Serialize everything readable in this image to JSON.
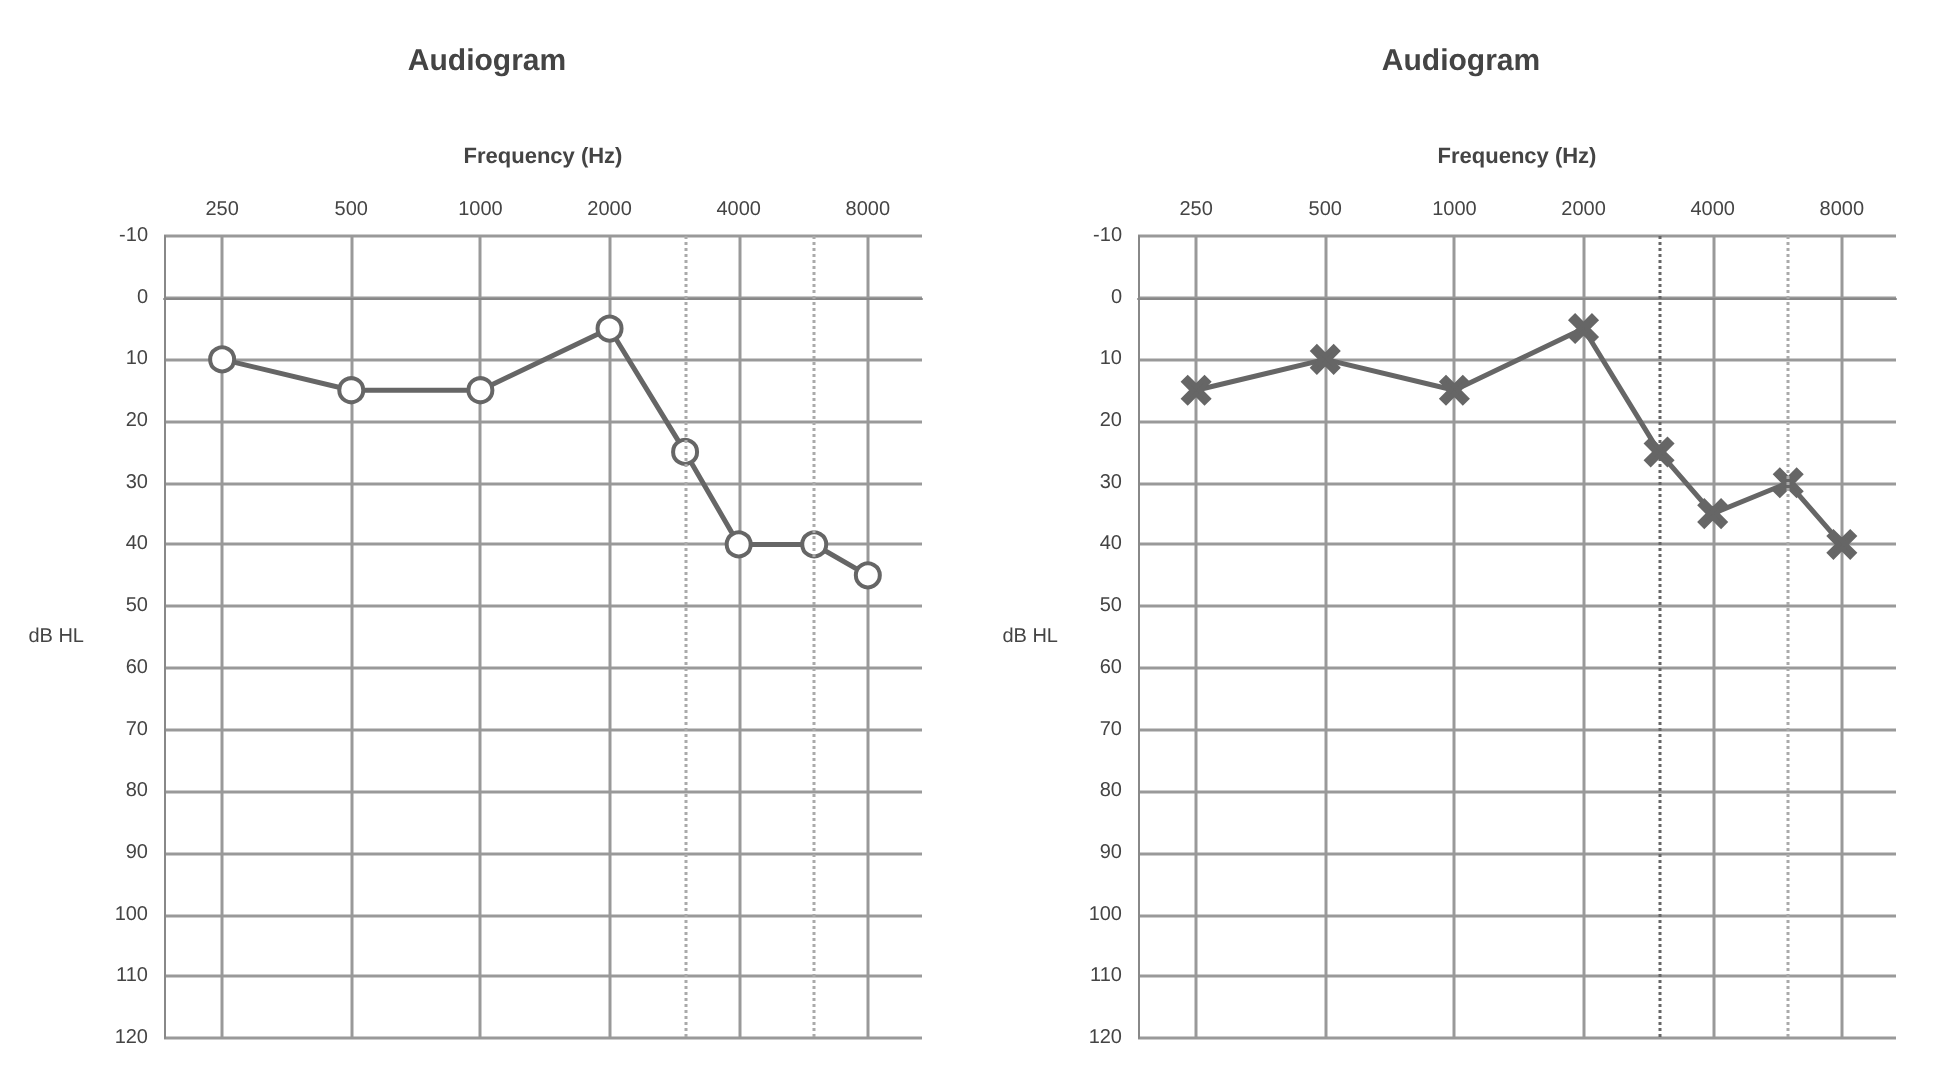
{
  "chart_data": [
    {
      "type": "line",
      "title": "Audiogram",
      "xlabel": "Frequency (Hz)",
      "ylabel": "dB HL",
      "log": "x",
      "x": [
        250,
        500,
        1000,
        2000,
        3000,
        4000,
        6000,
        8000
      ],
      "series": [
        {
          "color": "#666666",
          "values": [
            10,
            15,
            15,
            5,
            25,
            40,
            40,
            45
          ]
        }
      ],
      "xlim": [
        183,
        10700
      ],
      "xticks": [
        250,
        500,
        1000,
        2000,
        4000,
        8000
      ],
      "ylim": [
        120,
        -10
      ],
      "yticks": [
        -10,
        0,
        10,
        20,
        30,
        40,
        50,
        60,
        70,
        80,
        90,
        100,
        110,
        120
      ],
      "grid": true,
      "marker": "circle",
      "line_style": "solid",
      "ref_lines": [
        {
          "axis": "x",
          "value": 3000,
          "line_style": "dotted",
          "color": "#aaaaaa"
        },
        {
          "axis": "x",
          "value": 6000,
          "line_style": "dotted",
          "color": "#aaaaaa"
        }
      ]
    },
    {
      "type": "line",
      "title": "Audiogram",
      "xlabel": "Frequency (Hz)",
      "ylabel": "dB HL",
      "log": "x",
      "x": [
        250,
        500,
        1000,
        2000,
        3000,
        4000,
        6000,
        8000
      ],
      "series": [
        {
          "color": "#666666",
          "values": [
            15,
            10,
            15,
            5,
            25,
            35,
            30,
            40
          ]
        }
      ],
      "xlim": [
        183,
        10700
      ],
      "xticks": [
        250,
        500,
        1000,
        2000,
        4000,
        8000
      ],
      "ylim": [
        120,
        -10
      ],
      "yticks": [
        -10,
        0,
        10,
        20,
        30,
        40,
        50,
        60,
        70,
        80,
        90,
        100,
        110,
        120
      ],
      "grid": true,
      "marker": "cross",
      "line_style": "solid",
      "ref_lines": [
        {
          "axis": "x",
          "value": 3000,
          "line_style": "dotted",
          "color": "#666666"
        },
        {
          "axis": "x",
          "value": 6000,
          "line_style": "dotted",
          "color": "#aaaaaa"
        }
      ]
    }
  ]
}
